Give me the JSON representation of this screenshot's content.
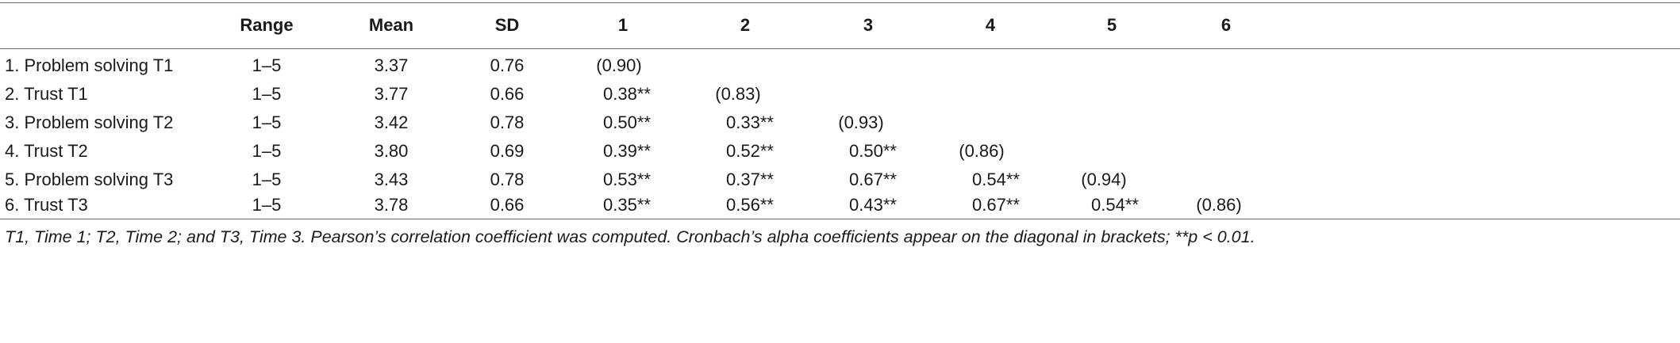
{
  "table": {
    "headers": [
      "",
      "Range",
      "Mean",
      "SD",
      "1",
      "2",
      "3",
      "4",
      "5",
      "6"
    ],
    "rows": [
      [
        "1. Problem solving T1",
        "1–5",
        "3.37",
        "0.76",
        "(0.90)",
        "",
        "",
        "",
        "",
        ""
      ],
      [
        "2. Trust T1",
        "1–5",
        "3.77",
        "0.66",
        "0.38**",
        "(0.83)",
        "",
        "",
        "",
        ""
      ],
      [
        "3. Problem solving T2",
        "1–5",
        "3.42",
        "0.78",
        "0.50**",
        "0.33**",
        "(0.93)",
        "",
        "",
        ""
      ],
      [
        "4. Trust T2",
        "1–5",
        "3.80",
        "0.69",
        "0.39**",
        "0.52**",
        "0.50**",
        "(0.86)",
        "",
        ""
      ],
      [
        "5. Problem solving T3",
        "1–5",
        "3.43",
        "0.78",
        "0.53**",
        "0.37**",
        "0.67**",
        "0.54**",
        "(0.94)",
        ""
      ],
      [
        "6. Trust T3",
        "1–5",
        "3.78",
        "0.66",
        "0.35**",
        "0.56**",
        "0.43**",
        "0.67**",
        "0.54**",
        "(0.86)"
      ]
    ]
  },
  "footnote": "T1, Time 1; T2, Time 2; and T3, Time 3. Pearson’s correlation coefficient was computed. Cronbach’s alpha coefficients appear on the diagonal in brackets; **p < 0.01."
}
